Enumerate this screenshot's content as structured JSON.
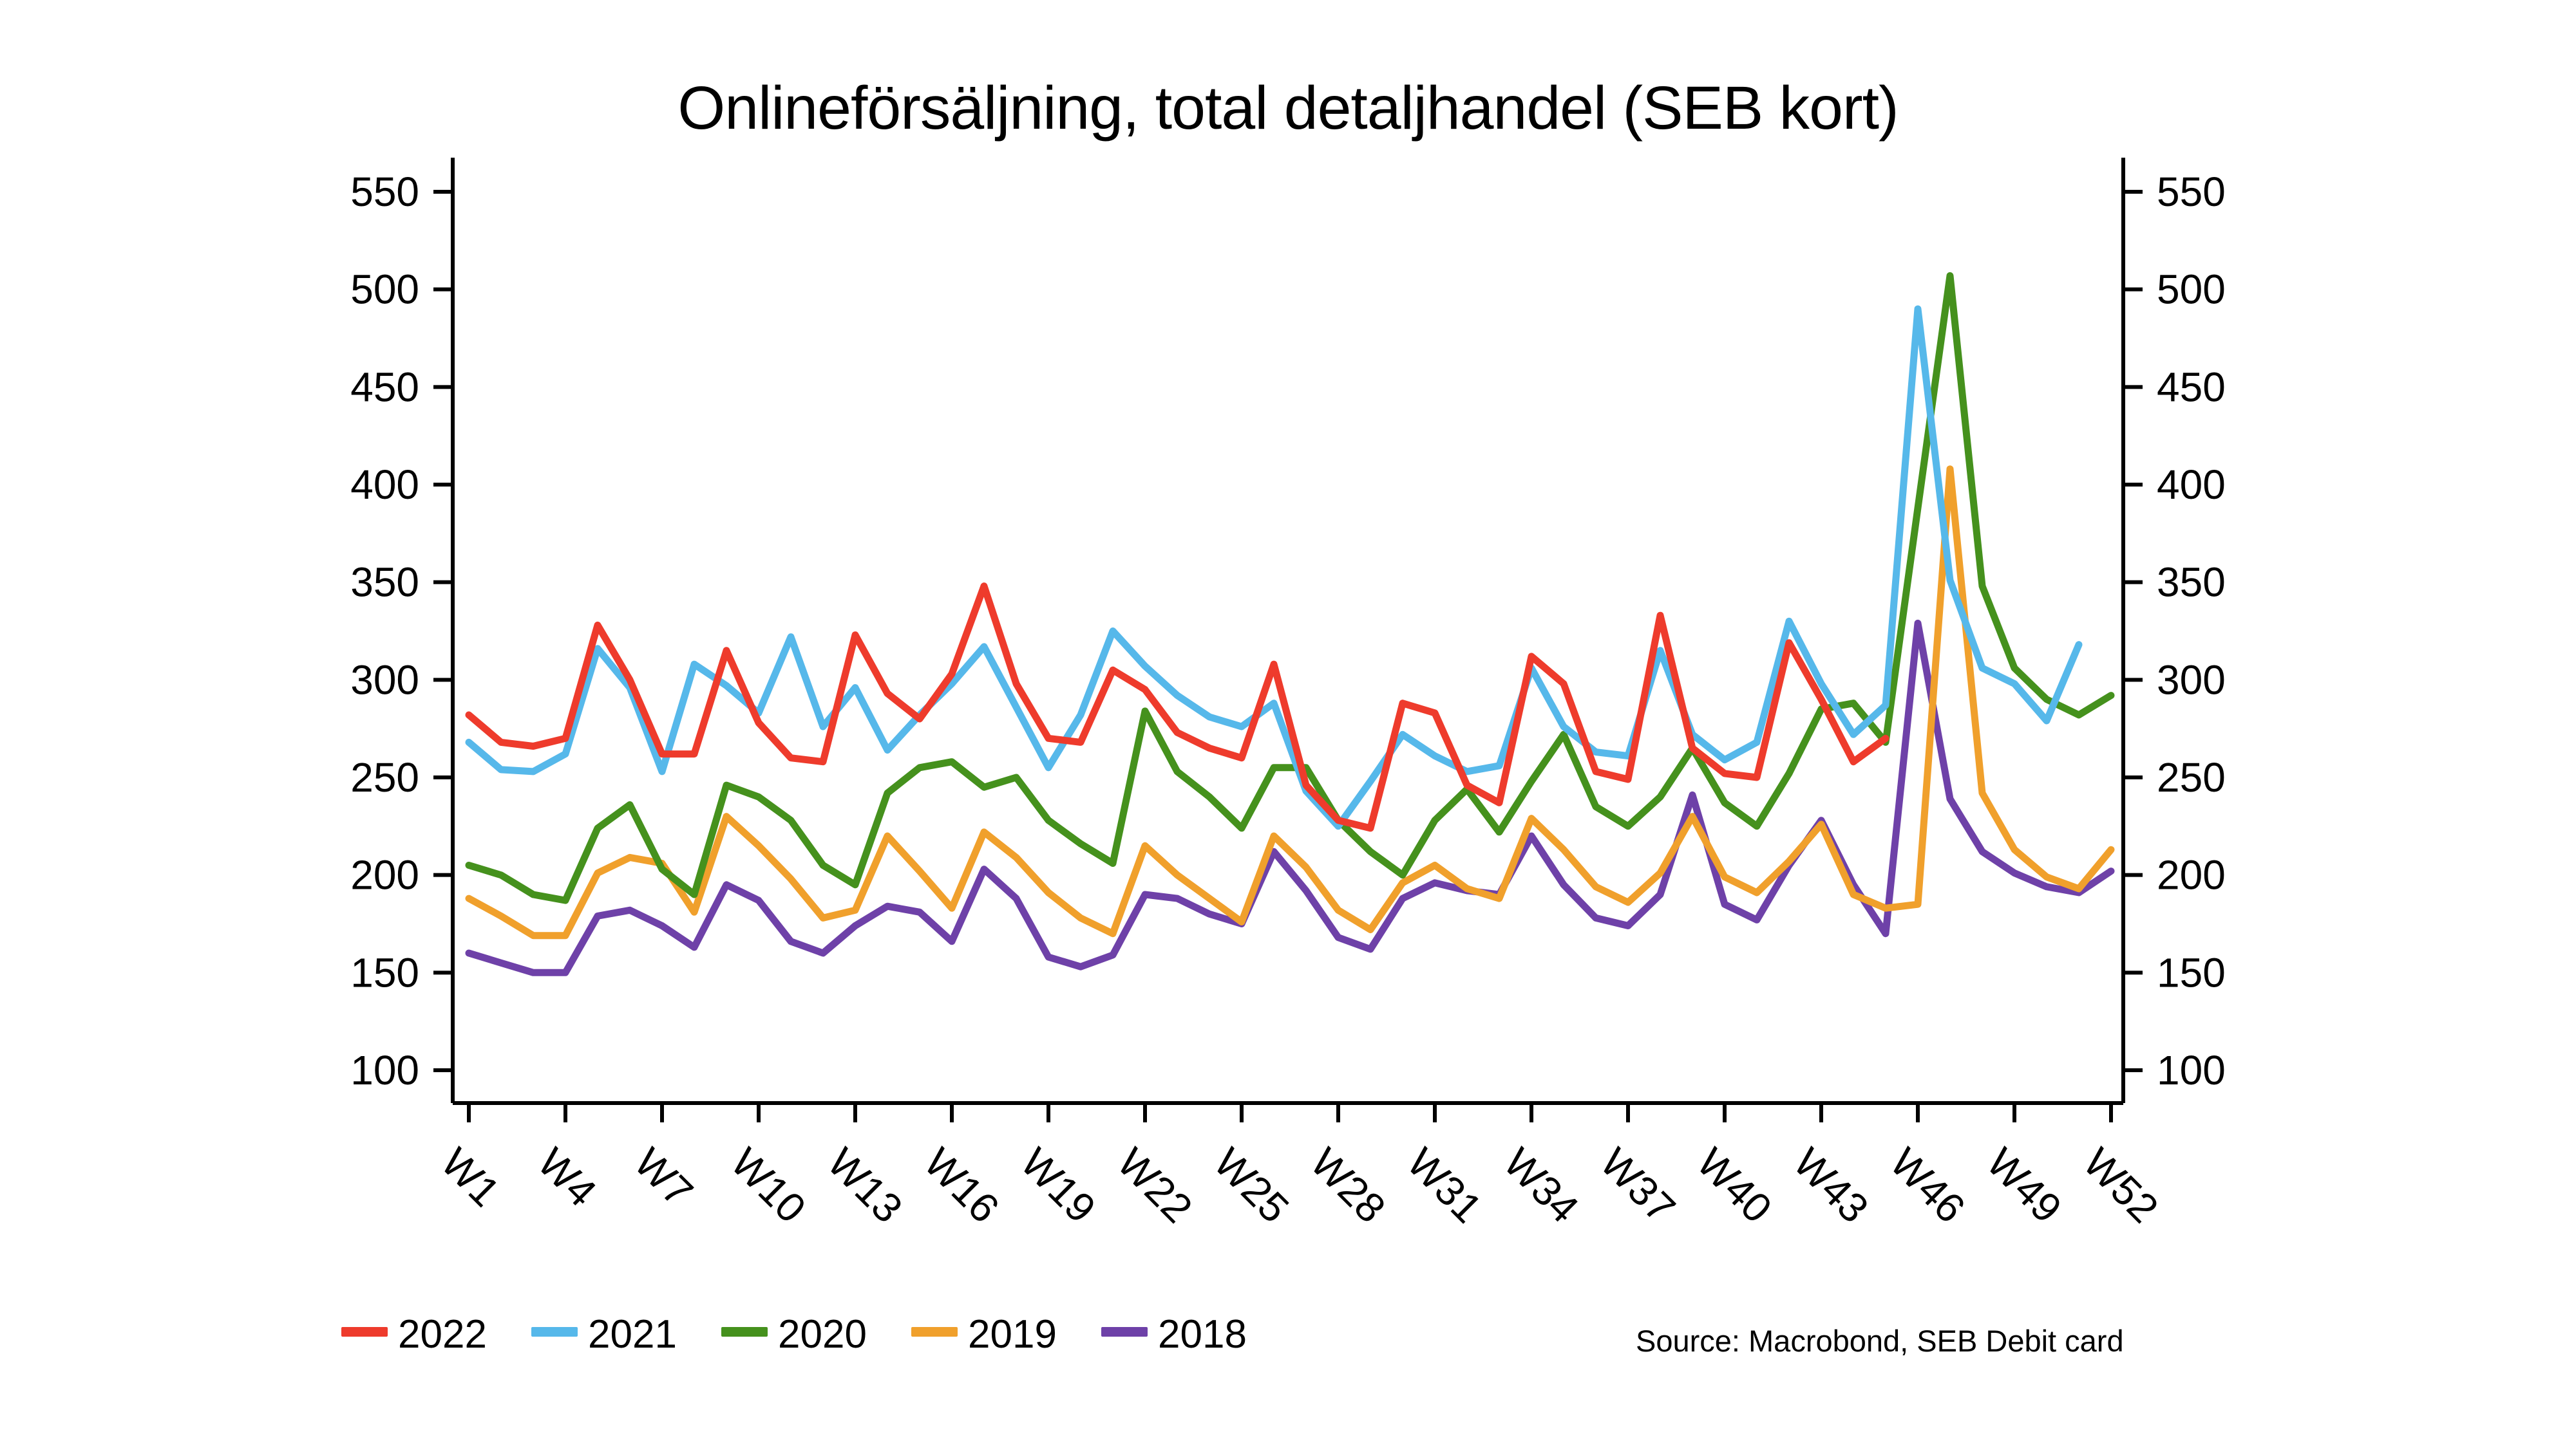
{
  "chart_data": {
    "type": "line",
    "title": "Onlineförsäljning, total detaljhandel (SEB kort)",
    "xlabel": "",
    "ylabel": "",
    "x_unit": "week",
    "weeks_total": 52,
    "x_tick_weeks": [
      1,
      4,
      7,
      10,
      13,
      16,
      19,
      22,
      25,
      28,
      31,
      34,
      37,
      40,
      43,
      46,
      49,
      52
    ],
    "x_tick_labels": [
      "W1",
      "W4",
      "W7",
      "W10",
      "W13",
      "W16",
      "W19",
      "W22",
      "W25",
      "W28",
      "W31",
      "W34",
      "W37",
      "W40",
      "W43",
      "W46",
      "W49",
      "W52"
    ],
    "y_ticks": [
      100,
      150,
      200,
      250,
      300,
      350,
      400,
      450,
      500,
      550
    ],
    "ylim": [
      83,
      567
    ],
    "y_axis_sides": "both",
    "grid": false,
    "legend_position": "bottom-left",
    "series": [
      {
        "name": "2022",
        "color": "#ee3b2c",
        "start_week": 1,
        "values": [
          282,
          268,
          266,
          270,
          328,
          300,
          262,
          262,
          315,
          278,
          260,
          258,
          323,
          293,
          280,
          303,
          348,
          298,
          270,
          268,
          305,
          295,
          273,
          265,
          260,
          308,
          246,
          228,
          224,
          288,
          283,
          246,
          237,
          312,
          298,
          253,
          249,
          333,
          265,
          252,
          250,
          319,
          290,
          258,
          270
        ]
      },
      {
        "name": "2021",
        "color": "#56b8ea",
        "start_week": 1,
        "values": [
          268,
          254,
          253,
          262,
          316,
          296,
          253,
          308,
          297,
          283,
          322,
          276,
          296,
          264,
          282,
          298,
          317,
          286,
          255,
          282,
          325,
          307,
          292,
          281,
          276,
          288,
          243,
          225,
          248,
          272,
          261,
          253,
          256,
          306,
          276,
          263,
          261,
          315,
          272,
          259,
          268,
          330,
          298,
          272,
          287,
          490,
          351,
          306,
          298,
          279,
          318
        ]
      },
      {
        "name": "2020",
        "color": "#45911d",
        "start_week": 1,
        "values": [
          205,
          200,
          190,
          187,
          224,
          236,
          203,
          190,
          246,
          240,
          228,
          205,
          195,
          242,
          255,
          258,
          245,
          250,
          228,
          216,
          206,
          284,
          253,
          240,
          224,
          255,
          255,
          228,
          212,
          200,
          228,
          244,
          222,
          248,
          272,
          235,
          225,
          240,
          265,
          237,
          225,
          252,
          285,
          288,
          268,
          388,
          507,
          348,
          306,
          290,
          282,
          292
        ]
      },
      {
        "name": "2019",
        "color": "#f0a02c",
        "start_week": 1,
        "values": [
          188,
          179,
          169,
          169,
          201,
          209,
          206,
          181,
          230,
          215,
          198,
          178,
          182,
          220,
          202,
          183,
          222,
          209,
          191,
          178,
          170,
          215,
          200,
          188,
          176,
          220,
          204,
          182,
          172,
          196,
          205,
          193,
          188,
          229,
          213,
          194,
          186,
          201,
          230,
          199,
          191,
          207,
          226,
          190,
          183,
          185,
          408,
          242,
          213,
          199,
          193,
          213
        ]
      },
      {
        "name": "2018",
        "color": "#6e41a8",
        "start_week": 1,
        "values": [
          160,
          155,
          150,
          150,
          179,
          182,
          174,
          163,
          195,
          187,
          166,
          160,
          174,
          184,
          181,
          166,
          203,
          188,
          158,
          153,
          159,
          190,
          188,
          180,
          175,
          212,
          192,
          168,
          162,
          188,
          196,
          192,
          190,
          220,
          195,
          178,
          174,
          190,
          241,
          185,
          177,
          205,
          228,
          195,
          170,
          329,
          239,
          212,
          201,
          194,
          191,
          202
        ]
      }
    ]
  },
  "source_note": "Source: Macrobond, SEB Debit card",
  "colors": {
    "axis": "#000000",
    "background": "#ffffff",
    "text": "#000000"
  }
}
